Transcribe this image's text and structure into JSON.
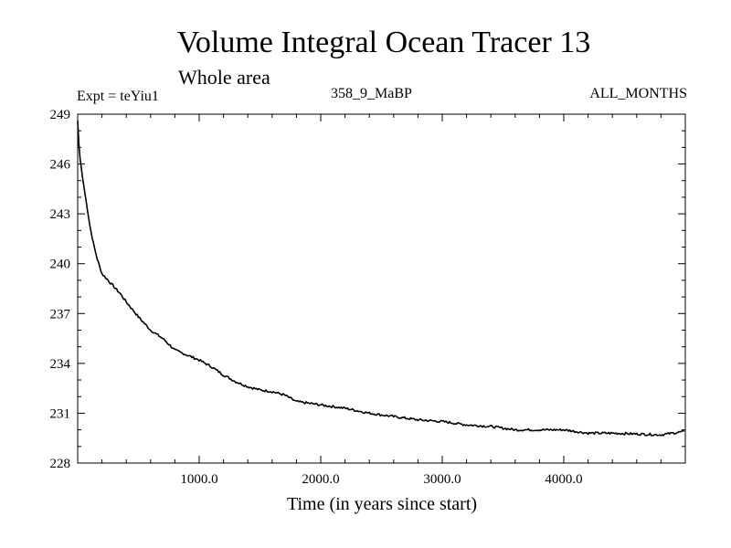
{
  "chart_data": {
    "type": "line",
    "title": "Volume Integral Ocean Tracer 13",
    "subtitle": "Whole area",
    "annotations": {
      "expt": "Expt = teYiu1",
      "period": "358_9_MaBP",
      "months": "ALL_MONTHS"
    },
    "xlabel": "Time (in years since start)",
    "ylabel": "",
    "xlim": [
      0,
      5000
    ],
    "ylim": [
      228,
      249
    ],
    "x_ticks": [
      1000,
      2000,
      3000,
      4000
    ],
    "x_tick_labels": [
      "1000.0",
      "2000.0",
      "3000.0",
      "4000.0"
    ],
    "y_ticks": [
      228,
      231,
      234,
      237,
      240,
      243,
      246,
      249
    ],
    "y_tick_labels": [
      "228",
      "231",
      "234",
      "237",
      "240",
      "243",
      "246",
      "249"
    ],
    "grid": false,
    "series": [
      {
        "name": "Ocean Tracer 13",
        "color": "#000000",
        "x": [
          0,
          10,
          20,
          40,
          60,
          80,
          100,
          130,
          160,
          200,
          250,
          300,
          350,
          400,
          500,
          600,
          700,
          800,
          900,
          1000,
          1100,
          1200,
          1300,
          1400,
          1500,
          1600,
          1700,
          1800,
          1900,
          2000,
          2200,
          2400,
          2600,
          2800,
          3000,
          3200,
          3400,
          3600,
          3800,
          4000,
          4200,
          4400,
          4600,
          4800,
          4990
        ],
        "values": [
          248.6,
          247.2,
          246.3,
          245.2,
          244.2,
          243.3,
          242.3,
          241.2,
          240.3,
          239.4,
          239.0,
          238.6,
          238.2,
          237.7,
          236.8,
          236.0,
          235.5,
          234.8,
          234.5,
          234.2,
          233.8,
          233.3,
          232.9,
          232.6,
          232.4,
          232.3,
          232.1,
          231.7,
          231.6,
          231.5,
          231.3,
          231.0,
          230.8,
          230.6,
          230.5,
          230.3,
          230.2,
          230.0,
          230.0,
          230.0,
          229.8,
          229.8,
          229.75,
          229.7,
          229.9
        ]
      }
    ]
  }
}
